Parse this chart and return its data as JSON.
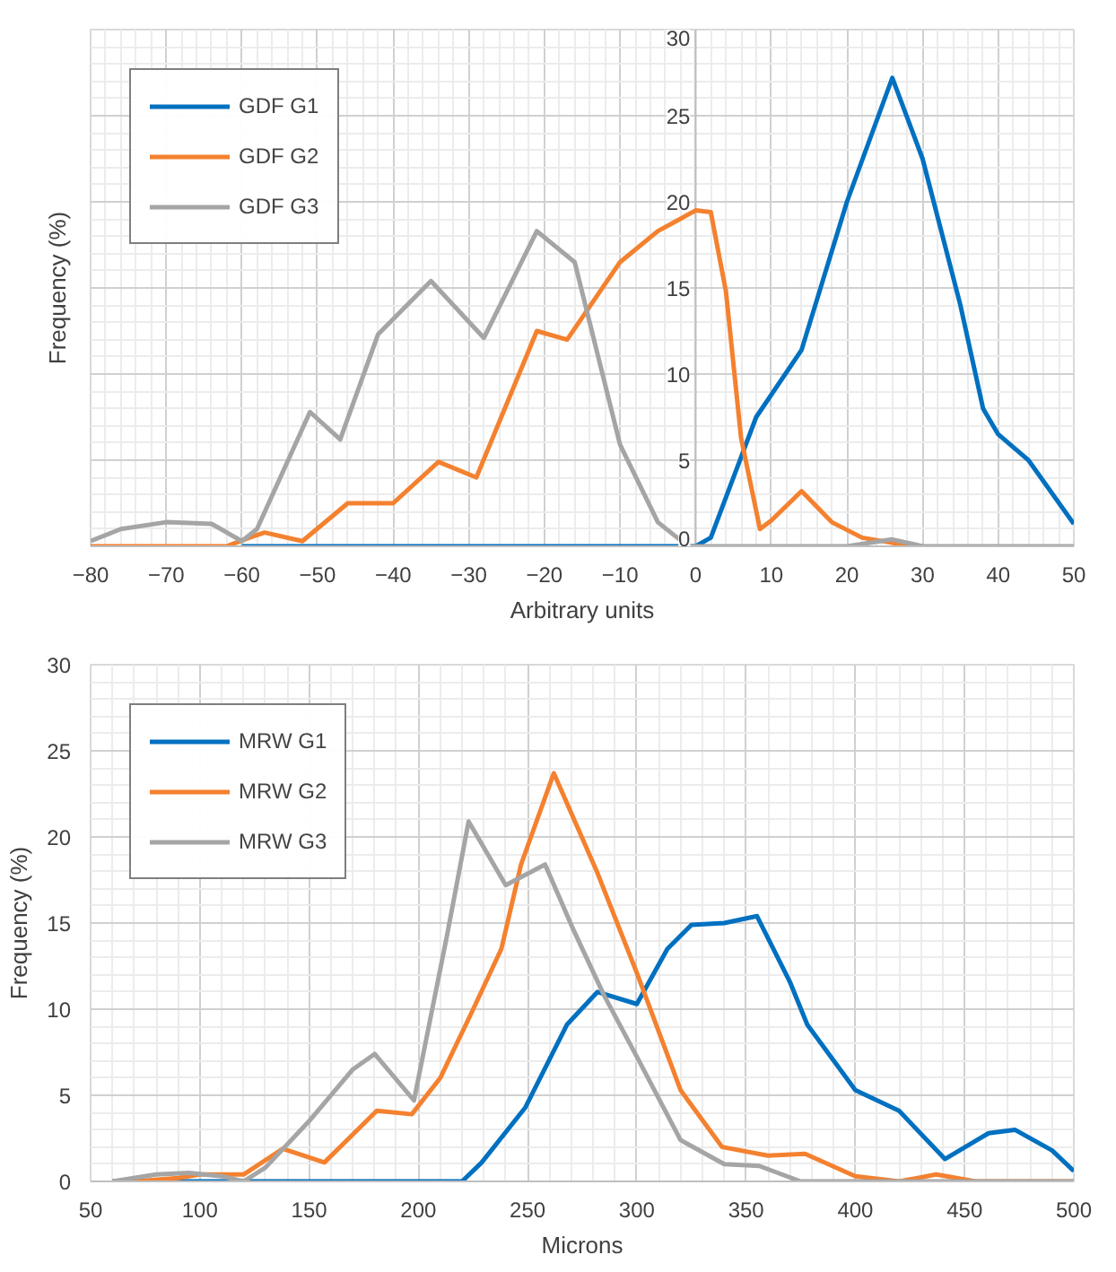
{
  "chart_data": [
    {
      "type": "line",
      "xlabel": "Arbitrary units",
      "ylabel": "Frequency (%)",
      "xlim": [
        -80,
        50
      ],
      "ylim": [
        0,
        30
      ],
      "xticks": [
        -80,
        -70,
        -60,
        -50,
        -40,
        -30,
        -20,
        -10,
        0,
        10,
        20,
        30,
        40,
        50
      ],
      "yticks": [
        0,
        5,
        10,
        15,
        20,
        25,
        30
      ],
      "grid": true,
      "legend": "top left",
      "line_style": "solid",
      "marker": "none",
      "series": [
        {
          "name": "GDF G1",
          "color": "#0070c0",
          "x": [
            -60,
            -40,
            -20,
            0,
            2,
            5,
            8,
            14,
            20,
            26,
            30,
            35,
            38,
            40,
            44,
            50
          ],
          "values": [
            0,
            0,
            0,
            0,
            0.5,
            4,
            7.5,
            11.4,
            20,
            27.2,
            22.5,
            14,
            8,
            6.5,
            5,
            1.3
          ]
        },
        {
          "name": "GDF G2",
          "color": "#f4812f",
          "x": [
            -80,
            -70,
            -62,
            -59,
            -57,
            -52,
            -46,
            -40,
            -34,
            -29,
            -21,
            -17,
            -10,
            -5,
            0,
            2,
            4,
            6,
            8.5,
            10,
            14,
            18,
            22,
            26,
            30
          ],
          "values": [
            0,
            0,
            0,
            0.5,
            0.8,
            0.3,
            2.5,
            2.5,
            4.9,
            4,
            12.5,
            12,
            16.5,
            18.3,
            19.5,
            19.4,
            14.8,
            6.3,
            1,
            1.5,
            3.2,
            1.4,
            0.5,
            0.2,
            0
          ]
        },
        {
          "name": "GDF G3",
          "color": "#a5a5a5",
          "x": [
            -80,
            -76,
            -70,
            -64,
            -60,
            -58,
            -51,
            -47,
            -42,
            -35,
            -28,
            -21,
            -16,
            -10,
            -5,
            -1,
            10,
            20,
            26,
            30,
            50
          ],
          "values": [
            0.3,
            1,
            1.4,
            1.3,
            0.3,
            1,
            7.8,
            6.2,
            12.3,
            15.4,
            12.1,
            18.3,
            16.5,
            5.9,
            1.4,
            0,
            0,
            0,
            0.4,
            0,
            0
          ]
        }
      ]
    },
    {
      "type": "line",
      "xlabel": "Microns",
      "ylabel": "Frequency (%)",
      "xlim": [
        50,
        500
      ],
      "ylim": [
        0,
        30
      ],
      "xticks": [
        50,
        100,
        150,
        200,
        250,
        300,
        350,
        400,
        450,
        500
      ],
      "yticks": [
        0,
        5,
        10,
        15,
        20,
        25,
        30
      ],
      "grid": true,
      "legend": "top left",
      "line_style": "solid",
      "marker": "none",
      "series": [
        {
          "name": "MRW G1",
          "color": "#0070c0",
          "x": [
            60,
            100,
            150,
            200,
            220,
            229,
            249,
            268,
            282,
            300,
            314,
            325,
            340,
            355,
            370,
            378,
            400,
            420,
            441,
            461,
            473,
            490,
            500
          ],
          "values": [
            0,
            0,
            0,
            0,
            0,
            1.1,
            4.3,
            9.1,
            11,
            10.3,
            13.5,
            14.9,
            15,
            15.4,
            11.6,
            9.1,
            5.3,
            4.1,
            1.3,
            2.8,
            3,
            1.8,
            0.6
          ]
        },
        {
          "name": "MRW G2",
          "color": "#f4812f",
          "x": [
            70,
            90,
            100,
            120,
            138,
            157,
            181,
            197,
            210,
            224,
            238,
            247,
            262,
            282,
            300,
            320,
            339,
            360,
            377,
            400,
            420,
            437,
            455,
            500
          ],
          "values": [
            0,
            0.2,
            0.4,
            0.4,
            1.9,
            1.1,
            4.1,
            3.9,
            6,
            9.7,
            13.5,
            18.4,
            23.7,
            17.9,
            12.1,
            5.3,
            2,
            1.5,
            1.6,
            0.3,
            0,
            0.4,
            0,
            0
          ]
        },
        {
          "name": "MRW G3",
          "color": "#a5a5a5",
          "x": [
            60,
            80,
            95,
            110,
            120,
            130,
            150,
            170,
            180,
            198,
            213,
            223,
            240,
            258,
            271,
            285,
            301,
            320,
            340,
            356,
            375,
            500
          ],
          "values": [
            0,
            0.4,
            0.5,
            0.3,
            0,
            0.8,
            3.5,
            6.5,
            7.4,
            4.7,
            14.2,
            20.9,
            17.2,
            18.4,
            14.6,
            10.8,
            7,
            2.4,
            1,
            0.9,
            0,
            0
          ]
        }
      ]
    }
  ]
}
